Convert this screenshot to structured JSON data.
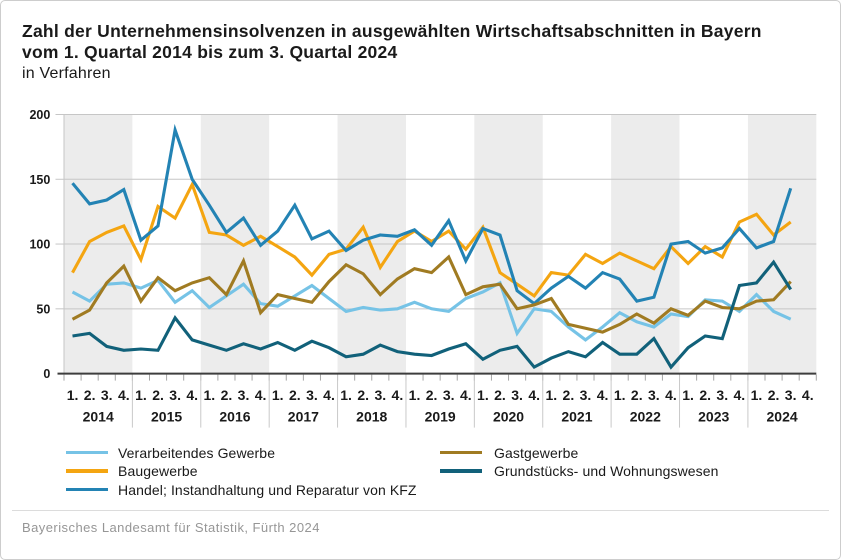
{
  "header": {
    "title_line1": "Zahl der Unternehmensinsolvenzen in ausgewählten Wirtschaftsabschnitten in Bayern",
    "title_line2": "vom 1. Quartal 2014 bis zum 3. Quartal 2024",
    "subtitle": "in Verfahren"
  },
  "footer": {
    "source": "Bayerisches Landesamt für Statistik, Fürth 2024"
  },
  "chart_data": {
    "type": "line",
    "title": "Zahl der Unternehmensinsolvenzen in ausgewählten Wirtschaftsabschnitten in Bayern vom 1. Quartal 2014 bis zum 3. Quartal 2024",
    "ylabel": "in Verfahren",
    "ylim": [
      0,
      200
    ],
    "yticks": [
      0,
      50,
      100,
      150,
      200
    ],
    "grid": "horizontal",
    "years": [
      "2014",
      "2015",
      "2016",
      "2017",
      "2018",
      "2019",
      "2020",
      "2021",
      "2022",
      "2023",
      "2024"
    ],
    "quarter_labels": [
      "1.",
      "2.",
      "3.",
      "4."
    ],
    "points_per_year": 4,
    "n_points": 43,
    "shaded_year_indices": [
      0,
      2,
      4,
      6,
      8,
      10
    ],
    "band_color": "#ececec",
    "legend_position": "bottom-left",
    "legend_columns": [
      [
        0,
        1,
        2
      ],
      [
        3,
        4
      ]
    ],
    "series": [
      {
        "name": "Verarbeitendes Gewerbe",
        "color": "#76c3e6",
        "values": [
          63,
          56,
          69,
          70,
          66,
          72,
          55,
          64,
          51,
          60,
          69,
          54,
          52,
          60,
          68,
          58,
          48,
          51,
          49,
          50,
          55,
          50,
          48,
          58,
          63,
          70,
          31,
          50,
          48,
          36,
          26,
          36,
          47,
          40,
          36,
          46,
          44,
          57,
          56,
          48,
          61,
          48,
          42
        ]
      },
      {
        "name": "Baugewerbe",
        "color": "#f4a511",
        "values": [
          78,
          102,
          109,
          114,
          88,
          129,
          120,
          146,
          109,
          107,
          99,
          106,
          98,
          90,
          76,
          92,
          96,
          113,
          82,
          102,
          110,
          102,
          110,
          96,
          113,
          78,
          69,
          60,
          78,
          76,
          92,
          85,
          93,
          87,
          81,
          98,
          85,
          98,
          90,
          117,
          123,
          107,
          117
        ]
      },
      {
        "name": "Handel; Instandhaltung und Reparatur von KFZ",
        "color": "#2383b4",
        "values": [
          147,
          131,
          134,
          142,
          103,
          114,
          188,
          150,
          130,
          109,
          120,
          99,
          110,
          130,
          104,
          110,
          95,
          103,
          107,
          106,
          111,
          99,
          118,
          87,
          112,
          107,
          64,
          54,
          66,
          75,
          66,
          78,
          73,
          56,
          59,
          100,
          102,
          93,
          97,
          112,
          97,
          102,
          143
        ]
      },
      {
        "name": "Gastgewerbe",
        "color": "#a07b22",
        "values": [
          42,
          49,
          70,
          83,
          56,
          74,
          64,
          70,
          74,
          61,
          87,
          47,
          61,
          58,
          55,
          71,
          84,
          77,
          61,
          73,
          81,
          78,
          90,
          61,
          67,
          69,
          50,
          53,
          58,
          38,
          35,
          32,
          38,
          46,
          39,
          50,
          45,
          56,
          51,
          50,
          56,
          57,
          71
        ]
      },
      {
        "name": "Grundstücks- und Wohnungswesen",
        "color": "#11617a",
        "values": [
          29,
          31,
          21,
          18,
          19,
          18,
          43,
          26,
          22,
          18,
          23,
          19,
          24,
          18,
          25,
          20,
          13,
          15,
          22,
          17,
          15,
          14,
          19,
          23,
          11,
          18,
          21,
          5,
          12,
          17,
          13,
          24,
          15,
          15,
          27,
          5,
          20,
          29,
          27,
          68,
          70,
          86,
          65
        ]
      }
    ]
  },
  "axis_style": {
    "label_color": "#1a1a1a",
    "grid_color": "#c6c6c6",
    "axis_color": "#3d3d3d",
    "tick_color": "#a6a6a6",
    "year_separator_color": "#c9c9c9"
  }
}
